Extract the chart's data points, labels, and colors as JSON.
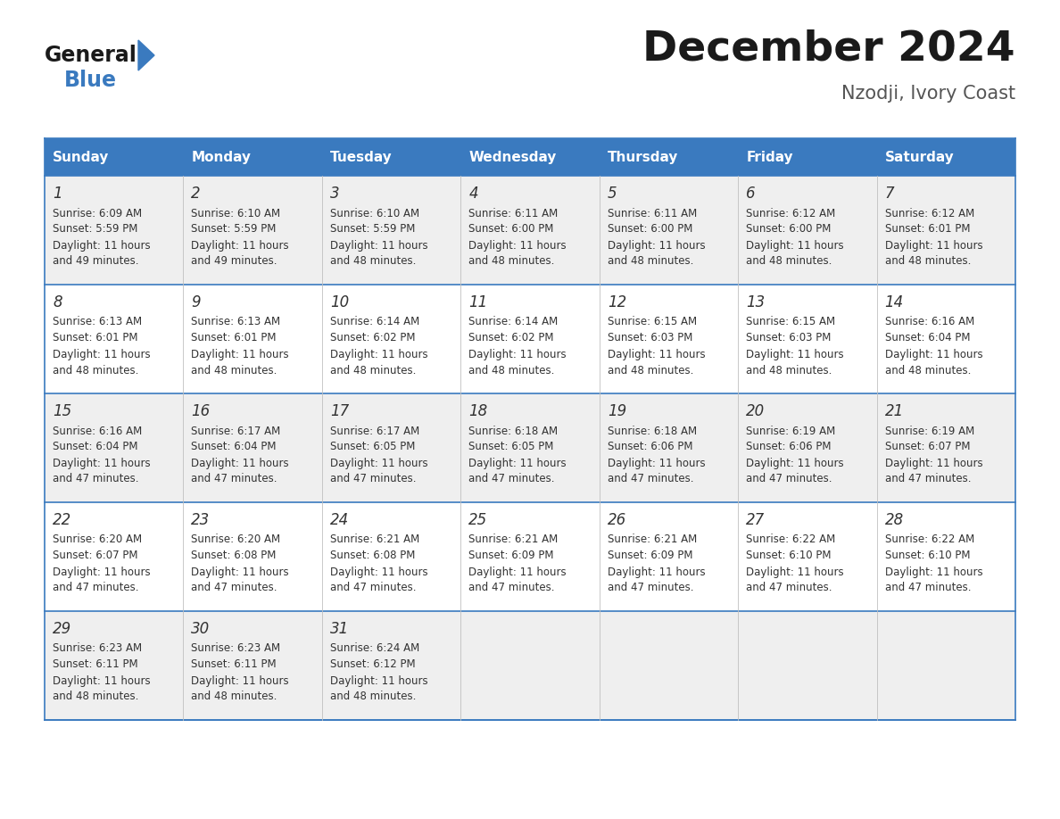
{
  "title": "December 2024",
  "subtitle": "Nzodji, Ivory Coast",
  "header_bg": "#3a7abf",
  "header_text": "#ffffff",
  "row_bg_odd": "#efefef",
  "row_bg_even": "#ffffff",
  "day_names": [
    "Sunday",
    "Monday",
    "Tuesday",
    "Wednesday",
    "Thursday",
    "Friday",
    "Saturday"
  ],
  "days": [
    {
      "day": 1,
      "col": 0,
      "row": 0,
      "sunrise": "6:09 AM",
      "sunset": "5:59 PM",
      "daylight": "11 hours and 49 minutes."
    },
    {
      "day": 2,
      "col": 1,
      "row": 0,
      "sunrise": "6:10 AM",
      "sunset": "5:59 PM",
      "daylight": "11 hours and 49 minutes."
    },
    {
      "day": 3,
      "col": 2,
      "row": 0,
      "sunrise": "6:10 AM",
      "sunset": "5:59 PM",
      "daylight": "11 hours and 48 minutes."
    },
    {
      "day": 4,
      "col": 3,
      "row": 0,
      "sunrise": "6:11 AM",
      "sunset": "6:00 PM",
      "daylight": "11 hours and 48 minutes."
    },
    {
      "day": 5,
      "col": 4,
      "row": 0,
      "sunrise": "6:11 AM",
      "sunset": "6:00 PM",
      "daylight": "11 hours and 48 minutes."
    },
    {
      "day": 6,
      "col": 5,
      "row": 0,
      "sunrise": "6:12 AM",
      "sunset": "6:00 PM",
      "daylight": "11 hours and 48 minutes."
    },
    {
      "day": 7,
      "col": 6,
      "row": 0,
      "sunrise": "6:12 AM",
      "sunset": "6:01 PM",
      "daylight": "11 hours and 48 minutes."
    },
    {
      "day": 8,
      "col": 0,
      "row": 1,
      "sunrise": "6:13 AM",
      "sunset": "6:01 PM",
      "daylight": "11 hours and 48 minutes."
    },
    {
      "day": 9,
      "col": 1,
      "row": 1,
      "sunrise": "6:13 AM",
      "sunset": "6:01 PM",
      "daylight": "11 hours and 48 minutes."
    },
    {
      "day": 10,
      "col": 2,
      "row": 1,
      "sunrise": "6:14 AM",
      "sunset": "6:02 PM",
      "daylight": "11 hours and 48 minutes."
    },
    {
      "day": 11,
      "col": 3,
      "row": 1,
      "sunrise": "6:14 AM",
      "sunset": "6:02 PM",
      "daylight": "11 hours and 48 minutes."
    },
    {
      "day": 12,
      "col": 4,
      "row": 1,
      "sunrise": "6:15 AM",
      "sunset": "6:03 PM",
      "daylight": "11 hours and 48 minutes."
    },
    {
      "day": 13,
      "col": 5,
      "row": 1,
      "sunrise": "6:15 AM",
      "sunset": "6:03 PM",
      "daylight": "11 hours and 48 minutes."
    },
    {
      "day": 14,
      "col": 6,
      "row": 1,
      "sunrise": "6:16 AM",
      "sunset": "6:04 PM",
      "daylight": "11 hours and 48 minutes."
    },
    {
      "day": 15,
      "col": 0,
      "row": 2,
      "sunrise": "6:16 AM",
      "sunset": "6:04 PM",
      "daylight": "11 hours and 47 minutes."
    },
    {
      "day": 16,
      "col": 1,
      "row": 2,
      "sunrise": "6:17 AM",
      "sunset": "6:04 PM",
      "daylight": "11 hours and 47 minutes."
    },
    {
      "day": 17,
      "col": 2,
      "row": 2,
      "sunrise": "6:17 AM",
      "sunset": "6:05 PM",
      "daylight": "11 hours and 47 minutes."
    },
    {
      "day": 18,
      "col": 3,
      "row": 2,
      "sunrise": "6:18 AM",
      "sunset": "6:05 PM",
      "daylight": "11 hours and 47 minutes."
    },
    {
      "day": 19,
      "col": 4,
      "row": 2,
      "sunrise": "6:18 AM",
      "sunset": "6:06 PM",
      "daylight": "11 hours and 47 minutes."
    },
    {
      "day": 20,
      "col": 5,
      "row": 2,
      "sunrise": "6:19 AM",
      "sunset": "6:06 PM",
      "daylight": "11 hours and 47 minutes."
    },
    {
      "day": 21,
      "col": 6,
      "row": 2,
      "sunrise": "6:19 AM",
      "sunset": "6:07 PM",
      "daylight": "11 hours and 47 minutes."
    },
    {
      "day": 22,
      "col": 0,
      "row": 3,
      "sunrise": "6:20 AM",
      "sunset": "6:07 PM",
      "daylight": "11 hours and 47 minutes."
    },
    {
      "day": 23,
      "col": 1,
      "row": 3,
      "sunrise": "6:20 AM",
      "sunset": "6:08 PM",
      "daylight": "11 hours and 47 minutes."
    },
    {
      "day": 24,
      "col": 2,
      "row": 3,
      "sunrise": "6:21 AM",
      "sunset": "6:08 PM",
      "daylight": "11 hours and 47 minutes."
    },
    {
      "day": 25,
      "col": 3,
      "row": 3,
      "sunrise": "6:21 AM",
      "sunset": "6:09 PM",
      "daylight": "11 hours and 47 minutes."
    },
    {
      "day": 26,
      "col": 4,
      "row": 3,
      "sunrise": "6:21 AM",
      "sunset": "6:09 PM",
      "daylight": "11 hours and 47 minutes."
    },
    {
      "day": 27,
      "col": 5,
      "row": 3,
      "sunrise": "6:22 AM",
      "sunset": "6:10 PM",
      "daylight": "11 hours and 47 minutes."
    },
    {
      "day": 28,
      "col": 6,
      "row": 3,
      "sunrise": "6:22 AM",
      "sunset": "6:10 PM",
      "daylight": "11 hours and 47 minutes."
    },
    {
      "day": 29,
      "col": 0,
      "row": 4,
      "sunrise": "6:23 AM",
      "sunset": "6:11 PM",
      "daylight": "11 hours and 48 minutes."
    },
    {
      "day": 30,
      "col": 1,
      "row": 4,
      "sunrise": "6:23 AM",
      "sunset": "6:11 PM",
      "daylight": "11 hours and 48 minutes."
    },
    {
      "day": 31,
      "col": 2,
      "row": 4,
      "sunrise": "6:24 AM",
      "sunset": "6:12 PM",
      "daylight": "11 hours and 48 minutes."
    }
  ],
  "logo_general_color": "#1a1a1a",
  "logo_blue_color": "#3a7abf",
  "logo_triangle_color": "#3a7abf",
  "fig_width": 11.88,
  "fig_height": 9.18,
  "dpi": 100
}
